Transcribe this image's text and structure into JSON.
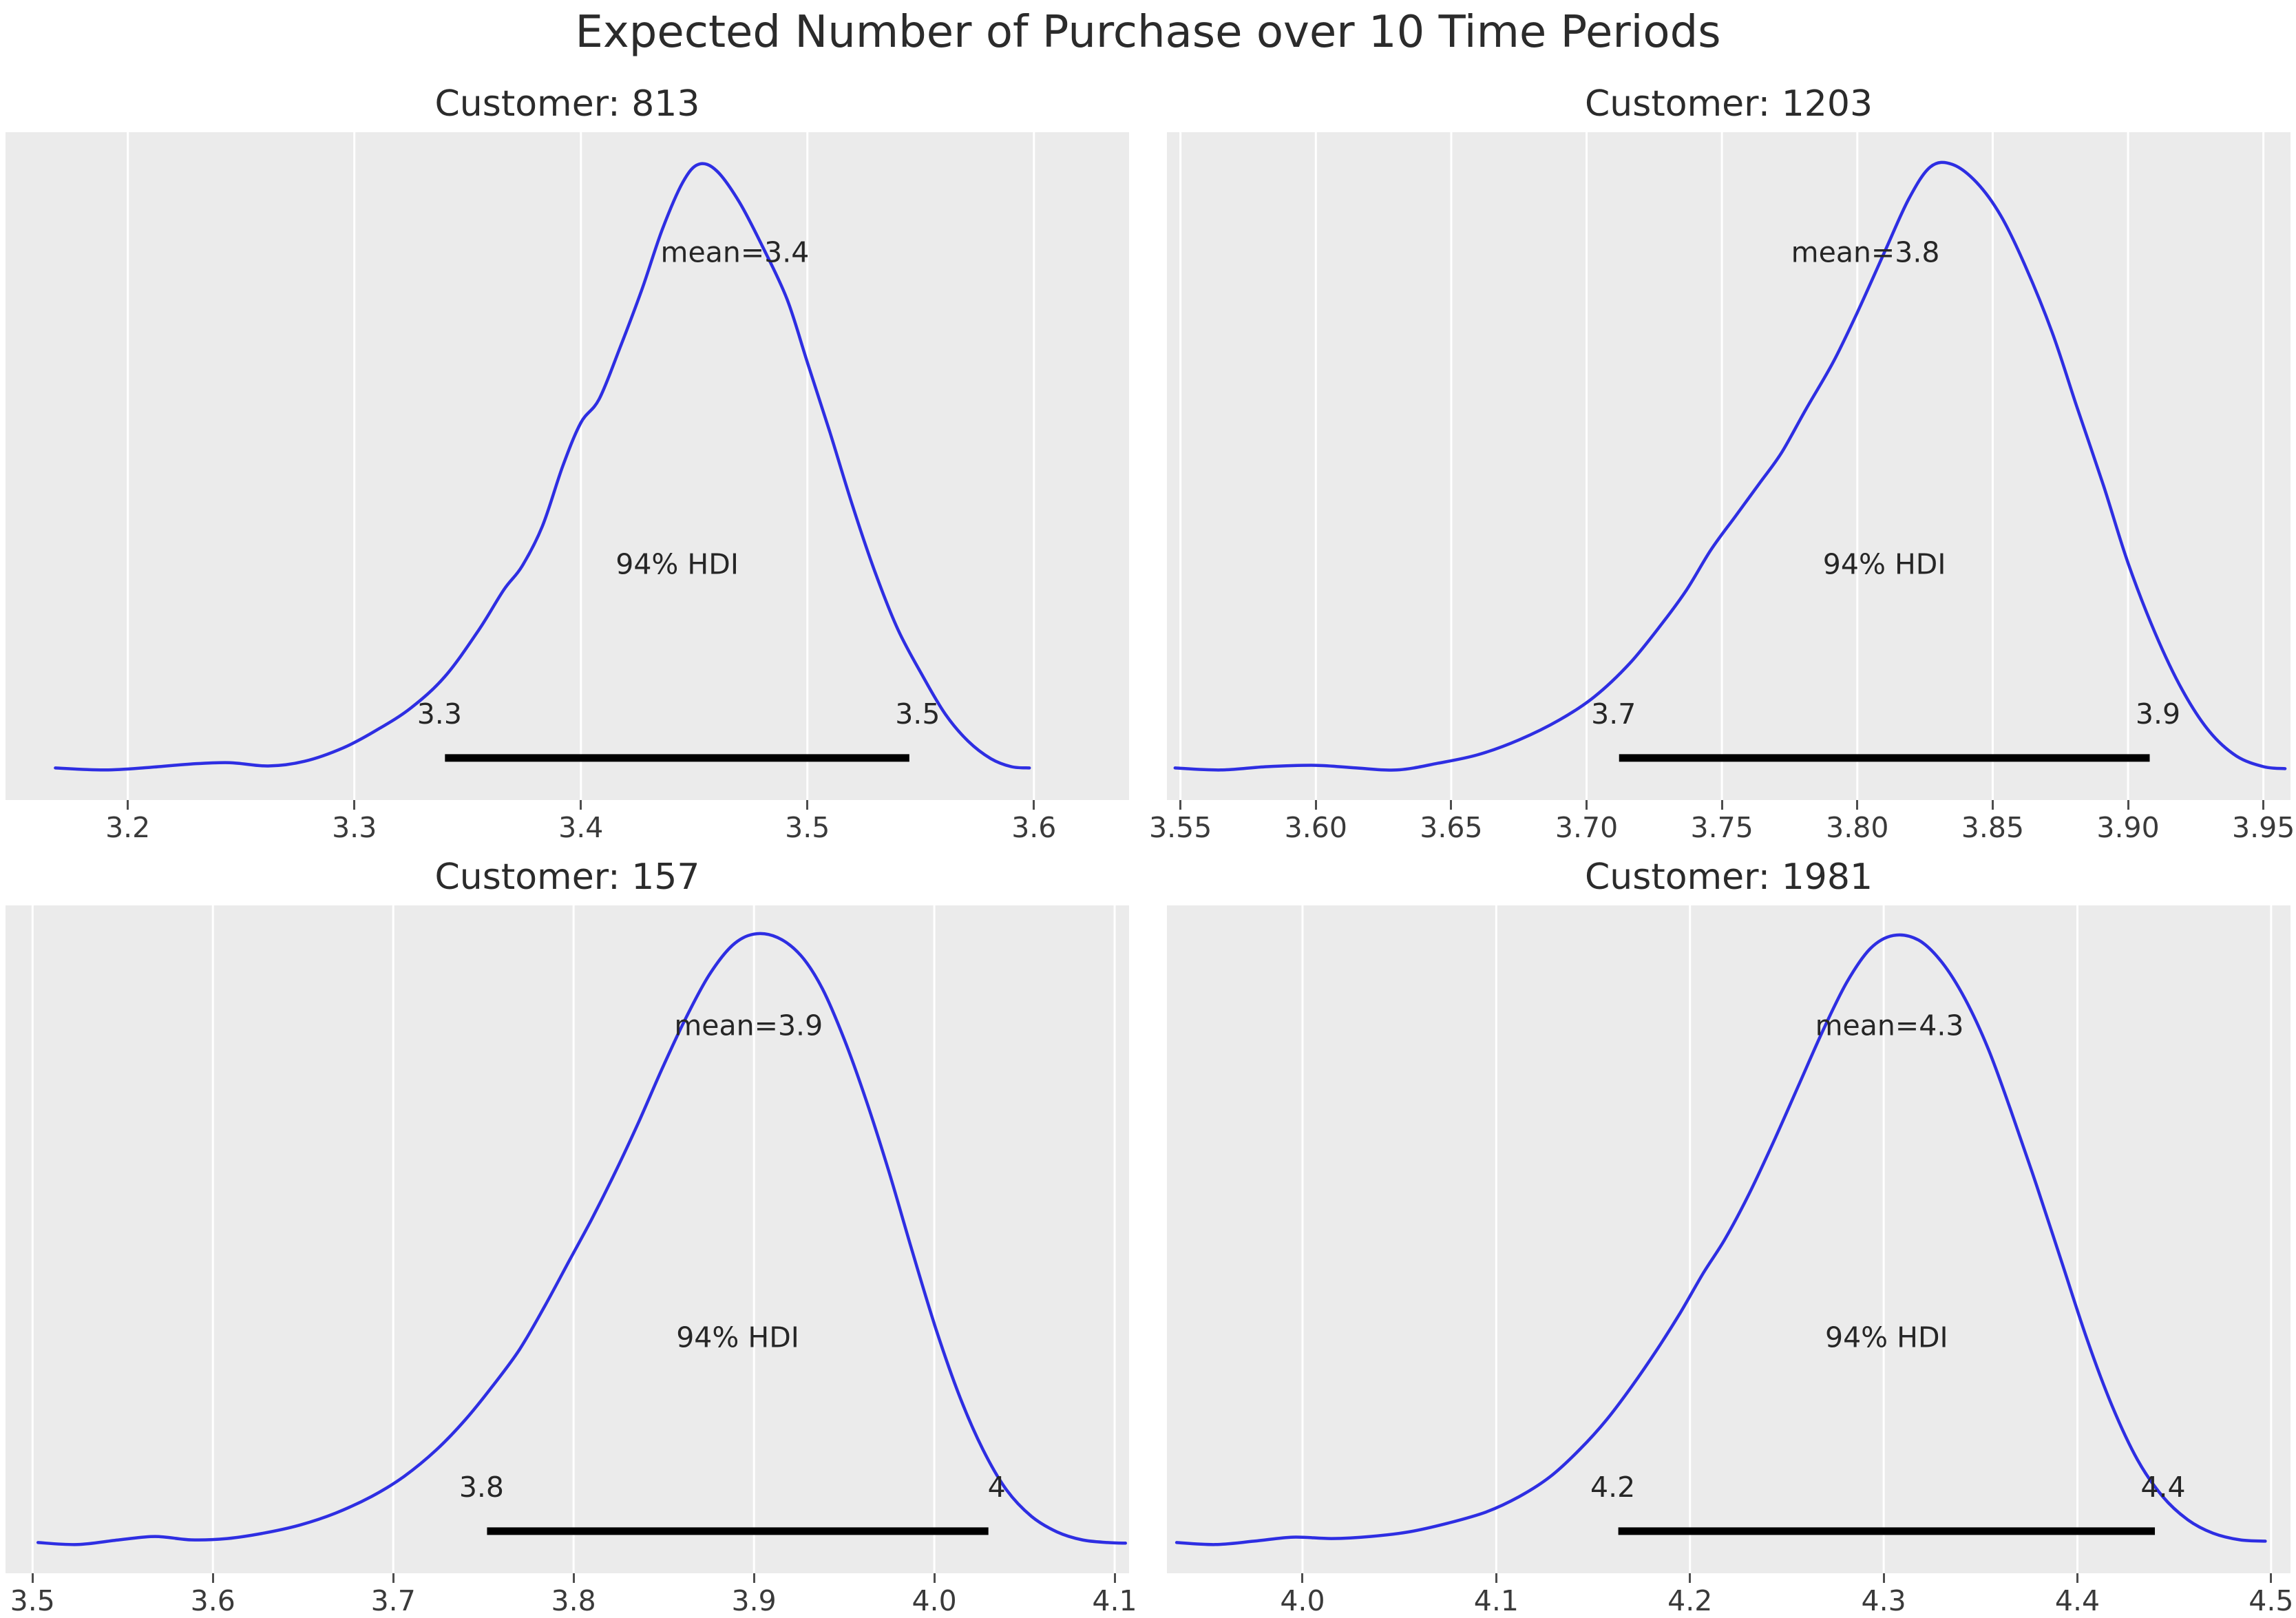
{
  "figure": {
    "title": "Expected Number of Purchase over 10 Time Periods"
  },
  "style": {
    "figure_bg": "#ffffff",
    "panel_bg": "#ebebeb",
    "grid_color": "#ffffff",
    "line_color": "#2e2ee2",
    "hdi_bar_color": "#000000",
    "annotation_color": "#262626",
    "tick_color": "#3a3a3a"
  },
  "chart_data": [
    {
      "type": "line",
      "title": "Customer: 813",
      "mean": 3.4,
      "mean_label": "mean=3.4",
      "mean_label_x": 3.468,
      "hdi_text": "94% HDI",
      "hdi_percent": 94,
      "hdi_lo": 3.34,
      "hdi_hi": 3.545,
      "hdi_lo_label": "3.3",
      "hdi_hi_label": "3.5",
      "xlim": [
        3.146,
        3.642
      ],
      "xticks": [
        3.2,
        3.3,
        3.4,
        3.5,
        3.6
      ],
      "xtick_labels": [
        "3.2",
        "3.3",
        "3.4",
        "3.5",
        "3.6"
      ],
      "curve": [
        [
          3.168,
          0.048
        ],
        [
          3.19,
          0.045
        ],
        [
          3.21,
          0.049
        ],
        [
          3.228,
          0.054
        ],
        [
          3.245,
          0.056
        ],
        [
          3.262,
          0.051
        ],
        [
          3.278,
          0.058
        ],
        [
          3.295,
          0.078
        ],
        [
          3.31,
          0.105
        ],
        [
          3.325,
          0.138
        ],
        [
          3.34,
          0.185
        ],
        [
          3.355,
          0.255
        ],
        [
          3.366,
          0.315
        ],
        [
          3.374,
          0.35
        ],
        [
          3.383,
          0.41
        ],
        [
          3.392,
          0.5
        ],
        [
          3.4,
          0.565
        ],
        [
          3.408,
          0.6
        ],
        [
          3.417,
          0.675
        ],
        [
          3.427,
          0.765
        ],
        [
          3.436,
          0.855
        ],
        [
          3.445,
          0.925
        ],
        [
          3.452,
          0.952
        ],
        [
          3.46,
          0.942
        ],
        [
          3.47,
          0.895
        ],
        [
          3.48,
          0.83
        ],
        [
          3.491,
          0.75
        ],
        [
          3.5,
          0.655
        ],
        [
          3.51,
          0.55
        ],
        [
          3.52,
          0.44
        ],
        [
          3.53,
          0.34
        ],
        [
          3.54,
          0.255
        ],
        [
          3.551,
          0.185
        ],
        [
          3.561,
          0.128
        ],
        [
          3.571,
          0.088
        ],
        [
          3.581,
          0.062
        ],
        [
          3.59,
          0.05
        ],
        [
          3.598,
          0.048
        ]
      ]
    },
    {
      "type": "line",
      "title": "Customer: 1203",
      "mean": 3.8,
      "mean_label": "mean=3.8",
      "mean_label_x": 3.803,
      "hdi_text": "94% HDI",
      "hdi_percent": 94,
      "hdi_lo": 3.712,
      "hdi_hi": 3.908,
      "hdi_lo_label": "3.7",
      "hdi_hi_label": "3.9",
      "xlim": [
        3.545,
        3.96
      ],
      "xticks": [
        3.55,
        3.6,
        3.65,
        3.7,
        3.75,
        3.8,
        3.85,
        3.9,
        3.95
      ],
      "xtick_labels": [
        "3.55",
        "3.60",
        "3.65",
        "3.70",
        "3.75",
        "3.80",
        "3.85",
        "3.90",
        "3.95"
      ],
      "curve": [
        [
          3.548,
          0.048
        ],
        [
          3.565,
          0.045
        ],
        [
          3.582,
          0.05
        ],
        [
          3.6,
          0.052
        ],
        [
          3.615,
          0.048
        ],
        [
          3.63,
          0.045
        ],
        [
          3.645,
          0.055
        ],
        [
          3.66,
          0.068
        ],
        [
          3.675,
          0.09
        ],
        [
          3.69,
          0.12
        ],
        [
          3.703,
          0.155
        ],
        [
          3.716,
          0.205
        ],
        [
          3.728,
          0.265
        ],
        [
          3.737,
          0.315
        ],
        [
          3.746,
          0.375
        ],
        [
          3.755,
          0.425
        ],
        [
          3.764,
          0.475
        ],
        [
          3.772,
          0.52
        ],
        [
          3.781,
          0.585
        ],
        [
          3.791,
          0.655
        ],
        [
          3.8,
          0.73
        ],
        [
          3.81,
          0.82
        ],
        [
          3.819,
          0.9
        ],
        [
          3.827,
          0.948
        ],
        [
          3.835,
          0.952
        ],
        [
          3.844,
          0.925
        ],
        [
          3.853,
          0.875
        ],
        [
          3.862,
          0.8
        ],
        [
          3.872,
          0.7
        ],
        [
          3.881,
          0.59
        ],
        [
          3.891,
          0.47
        ],
        [
          3.9,
          0.355
        ],
        [
          3.91,
          0.25
        ],
        [
          3.92,
          0.165
        ],
        [
          3.93,
          0.103
        ],
        [
          3.94,
          0.066
        ],
        [
          3.95,
          0.05
        ],
        [
          3.958,
          0.047
        ]
      ]
    },
    {
      "type": "line",
      "title": "Customer: 157",
      "mean": 3.9,
      "mean_label": "mean=3.9",
      "mean_label_x": 3.897,
      "hdi_text": "94% HDI",
      "hdi_percent": 94,
      "hdi_lo": 3.752,
      "hdi_hi": 4.03,
      "hdi_lo_label": "3.8",
      "hdi_hi_label": "4",
      "xlim": [
        3.485,
        4.108
      ],
      "xticks": [
        3.5,
        3.6,
        3.7,
        3.8,
        3.9,
        4.0,
        4.1
      ],
      "xtick_labels": [
        "3.5",
        "3.6",
        "3.7",
        "3.8",
        "3.9",
        "4.0",
        "4.1"
      ],
      "curve": [
        [
          3.503,
          0.046
        ],
        [
          3.525,
          0.043
        ],
        [
          3.548,
          0.05
        ],
        [
          3.568,
          0.055
        ],
        [
          3.588,
          0.05
        ],
        [
          3.608,
          0.052
        ],
        [
          3.628,
          0.06
        ],
        [
          3.648,
          0.072
        ],
        [
          3.668,
          0.09
        ],
        [
          3.688,
          0.115
        ],
        [
          3.706,
          0.145
        ],
        [
          3.724,
          0.185
        ],
        [
          3.74,
          0.23
        ],
        [
          3.755,
          0.28
        ],
        [
          3.77,
          0.335
        ],
        [
          3.784,
          0.4
        ],
        [
          3.797,
          0.465
        ],
        [
          3.81,
          0.53
        ],
        [
          3.823,
          0.6
        ],
        [
          3.836,
          0.675
        ],
        [
          3.849,
          0.755
        ],
        [
          3.862,
          0.83
        ],
        [
          3.875,
          0.895
        ],
        [
          3.888,
          0.94
        ],
        [
          3.9,
          0.957
        ],
        [
          3.913,
          0.952
        ],
        [
          3.926,
          0.925
        ],
        [
          3.938,
          0.875
        ],
        [
          3.95,
          0.8
        ],
        [
          3.962,
          0.71
        ],
        [
          3.975,
          0.6
        ],
        [
          3.988,
          0.48
        ],
        [
          4.001,
          0.365
        ],
        [
          4.014,
          0.265
        ],
        [
          4.027,
          0.185
        ],
        [
          4.04,
          0.125
        ],
        [
          4.054,
          0.085
        ],
        [
          4.068,
          0.062
        ],
        [
          4.082,
          0.05
        ],
        [
          4.096,
          0.046
        ],
        [
          4.106,
          0.045
        ]
      ]
    },
    {
      "type": "line",
      "title": "Customer: 1981",
      "mean": 4.3,
      "mean_label": "mean=4.3",
      "mean_label_x": 4.303,
      "hdi_text": "94% HDI",
      "hdi_percent": 94,
      "hdi_lo": 4.163,
      "hdi_hi": 4.44,
      "hdi_lo_label": "4.2",
      "hdi_hi_label": "4.4",
      "xlim": [
        3.93,
        4.51
      ],
      "xticks": [
        4.0,
        4.1,
        4.2,
        4.3,
        4.4,
        4.5
      ],
      "xtick_labels": [
        "4.0",
        "4.1",
        "4.2",
        "4.3",
        "4.4",
        "4.5"
      ],
      "curve": [
        [
          3.935,
          0.046
        ],
        [
          3.955,
          0.043
        ],
        [
          3.975,
          0.048
        ],
        [
          3.995,
          0.054
        ],
        [
          4.015,
          0.052
        ],
        [
          4.035,
          0.055
        ],
        [
          4.055,
          0.062
        ],
        [
          4.075,
          0.075
        ],
        [
          4.095,
          0.092
        ],
        [
          4.112,
          0.115
        ],
        [
          4.128,
          0.145
        ],
        [
          4.143,
          0.185
        ],
        [
          4.157,
          0.23
        ],
        [
          4.17,
          0.28
        ],
        [
          4.183,
          0.335
        ],
        [
          4.195,
          0.39
        ],
        [
          4.207,
          0.45
        ],
        [
          4.218,
          0.5
        ],
        [
          4.23,
          0.565
        ],
        [
          4.243,
          0.645
        ],
        [
          4.256,
          0.73
        ],
        [
          4.269,
          0.815
        ],
        [
          4.281,
          0.885
        ],
        [
          4.293,
          0.935
        ],
        [
          4.305,
          0.955
        ],
        [
          4.318,
          0.948
        ],
        [
          4.33,
          0.915
        ],
        [
          4.342,
          0.86
        ],
        [
          4.354,
          0.785
        ],
        [
          4.366,
          0.69
        ],
        [
          4.379,
          0.58
        ],
        [
          4.392,
          0.465
        ],
        [
          4.405,
          0.35
        ],
        [
          4.418,
          0.25
        ],
        [
          4.431,
          0.17
        ],
        [
          4.444,
          0.115
        ],
        [
          4.457,
          0.08
        ],
        [
          4.47,
          0.06
        ],
        [
          4.484,
          0.05
        ],
        [
          4.497,
          0.048
        ]
      ]
    }
  ]
}
